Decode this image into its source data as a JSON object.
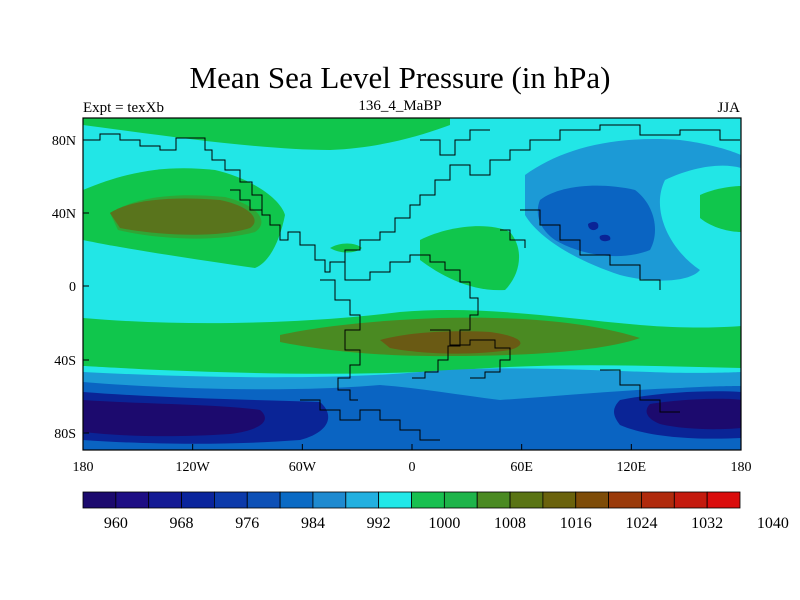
{
  "header": {
    "title": "Mean Sea Level Pressure (in hPa)",
    "left_label": "Expt = texXb",
    "center_label": "136_4_MaBP",
    "right_label": "JJA"
  },
  "map": {
    "lon_ticks": [
      "180",
      "120W",
      "60W",
      "0",
      "60E",
      "120E",
      "180"
    ],
    "lat_ticks": [
      "80N",
      "40N",
      "0",
      "40S",
      "80S"
    ]
  },
  "colorbar": {
    "colors": [
      "#1c0a6e",
      "#1e0e84",
      "#141a94",
      "#0a249c",
      "#0c3aaa",
      "#0d50b6",
      "#0a6ac4",
      "#1e8ad0",
      "#22b0e0",
      "#21e8e8",
      "#18c050",
      "#1eb44a",
      "#4a8a22",
      "#5a7414",
      "#6a620c",
      "#7e4c08",
      "#9a3a0a",
      "#b02a0c",
      "#c41a0e",
      "#da0c0c"
    ],
    "labels": [
      "960",
      "968",
      "976",
      "984",
      "992",
      "1000",
      "1008",
      "1016",
      "1024",
      "1032",
      "1040"
    ]
  },
  "fields": {
    "background": "#22e6e6",
    "green_light": "#10c64c",
    "green_dark": "#4a8a22",
    "brown": "#6a5a14",
    "blue_light": "#1c9ad6",
    "blue_mid": "#0a64c2",
    "blue_dark": "#0a2496",
    "navy": "#1c0a6e"
  }
}
